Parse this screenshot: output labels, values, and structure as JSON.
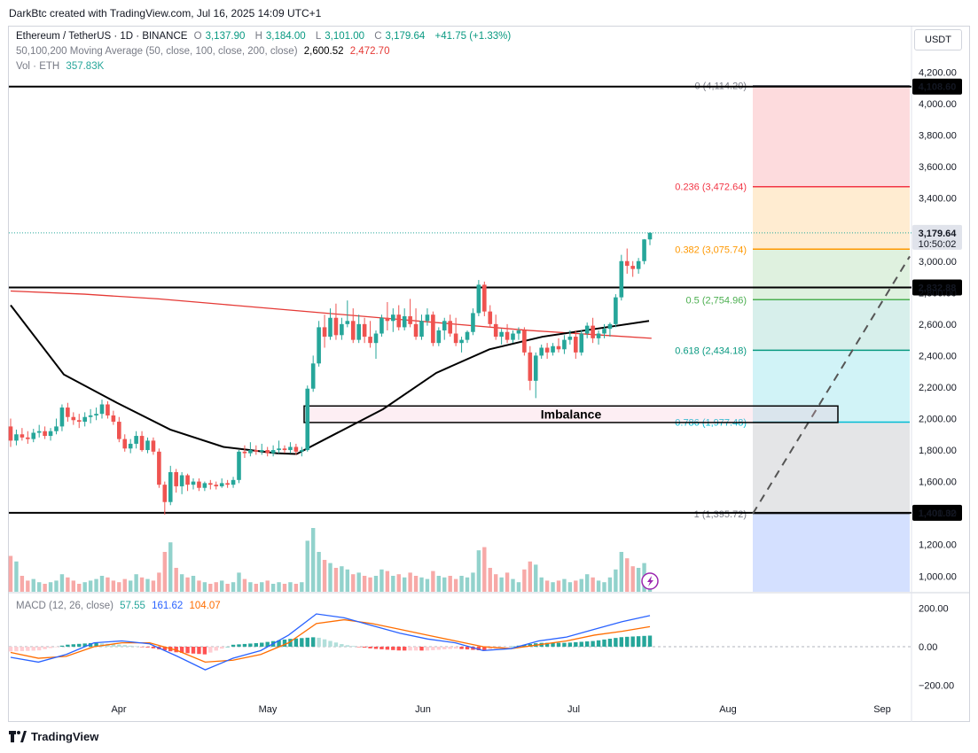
{
  "header": {
    "attribution": "DarkBtc created with TradingView.com, Jul 16, 2025 14:09 UTC+1"
  },
  "legend": {
    "symbol": "Ethereum / TetherUS · 1D · BINANCE",
    "o_label": "O",
    "o": "3,137.90",
    "h_label": "H",
    "h": "3,184.00",
    "l_label": "L",
    "l": "3,101.00",
    "c_label": "C",
    "c": "3,179.64",
    "change": "+41.75 (+1.33%)",
    "ma_label": "50,100,200 Moving Average (50, close, 100, close, 200, close)",
    "ma_v1": "2,600.52",
    "ma_v2": "2,472.70",
    "vol_label": "Vol · ETH",
    "vol": "357.83K",
    "macd_label": "MACD (12, 26, close)",
    "macd_v1": "57.55",
    "macd_v2": "161.62",
    "macd_v3": "104.07"
  },
  "currency_button": "USDT",
  "footer": {
    "brand": "TradingView"
  },
  "colors": {
    "up": "#26a69a",
    "down": "#ef5350",
    "ma50": "#000000",
    "ma200": "#e53935",
    "macd": "#2962ff",
    "signal": "#ff6d00"
  },
  "chart_data": {
    "type": "candlestick",
    "y_axis_ticks": [
      "4,200.00",
      "4,000.00",
      "3,800.00",
      "3,600.00",
      "3,400.00",
      "3,200.00",
      "3,000.00",
      "2,800.00",
      "2,600.00",
      "2,400.00",
      "2,200.00",
      "2,000.00",
      "1,800.00",
      "1,600.00",
      "1,400.00",
      "1,200.00",
      "1,000.00"
    ],
    "y_axis_values": [
      4200,
      4000,
      3800,
      3600,
      3400,
      3200,
      3000,
      2800,
      2600,
      2400,
      2200,
      2000,
      1800,
      1600,
      1400,
      1200,
      1000
    ],
    "x_axis_labels": [
      "Apr",
      "May",
      "Jun",
      "Jul",
      "Aug",
      "Sep"
    ],
    "price_range": [
      900,
      4300
    ],
    "last_price": "3,179.64",
    "countdown": "10:50:02",
    "horizontal_levels": [
      {
        "value": 4108.6,
        "label": "4,108.60"
      },
      {
        "value": 2832.88,
        "label": "2,832.88"
      },
      {
        "value": 1401.32,
        "label": "1,401.32"
      }
    ],
    "fib_levels": [
      {
        "ratio": "0",
        "label": "0 (4,114.20)",
        "value": 4114.2,
        "color": "#787b86"
      },
      {
        "ratio": "0.236",
        "label": "0.236 (3,472.64)",
        "value": 3472.64,
        "color": "#f23645"
      },
      {
        "ratio": "0.382",
        "label": "0.382 (3,075.74)",
        "value": 3075.74,
        "color": "#ff9800"
      },
      {
        "ratio": "0.5",
        "label": "0.5 (2,754.96)",
        "value": 2754.96,
        "color": "#4caf50"
      },
      {
        "ratio": "0.618",
        "label": "0.618 (2,434.18)",
        "value": 2434.18,
        "color": "#089981"
      },
      {
        "ratio": "0.786",
        "label": "0.786 (1,977.48)",
        "value": 1977.48,
        "color": "#00bcd4"
      },
      {
        "ratio": "1",
        "label": "1 (1,395.72)",
        "value": 1395.72,
        "color": "#787b86"
      }
    ],
    "imbalance": {
      "label": "Imbalance",
      "top": 2080,
      "bottom": 1975
    },
    "macd_axis_ticks": [
      "200.00",
      "0.00",
      "−200.00"
    ],
    "macd_axis_values": [
      200,
      0,
      -200
    ],
    "candles": [
      [
        1950,
        2000,
        1820,
        1860
      ],
      [
        1860,
        1930,
        1830,
        1900
      ],
      [
        1900,
        1940,
        1860,
        1880
      ],
      [
        1880,
        1920,
        1840,
        1870
      ],
      [
        1870,
        1935,
        1850,
        1910
      ],
      [
        1910,
        1960,
        1880,
        1920
      ],
      [
        1920,
        1950,
        1870,
        1890
      ],
      [
        1890,
        1940,
        1860,
        1920
      ],
      [
        1920,
        2000,
        1900,
        1950
      ],
      [
        1950,
        2090,
        1920,
        2070
      ],
      [
        2070,
        2100,
        1980,
        2010
      ],
      [
        2010,
        2040,
        1960,
        1990
      ],
      [
        1990,
        2030,
        1940,
        1980
      ],
      [
        1980,
        2040,
        1950,
        2010
      ],
      [
        2010,
        2060,
        1970,
        2020
      ],
      [
        2020,
        2070,
        1990,
        2030
      ],
      [
        2030,
        2120,
        2000,
        2090
      ],
      [
        2090,
        2110,
        2000,
        2020
      ],
      [
        2020,
        2050,
        1960,
        1980
      ],
      [
        1980,
        2010,
        1850,
        1870
      ],
      [
        1870,
        1900,
        1790,
        1810
      ],
      [
        1810,
        1870,
        1780,
        1840
      ],
      [
        1840,
        1920,
        1810,
        1890
      ],
      [
        1890,
        1920,
        1790,
        1800
      ],
      [
        1800,
        1880,
        1780,
        1860
      ],
      [
        1860,
        1880,
        1770,
        1790
      ],
      [
        1790,
        1810,
        1560,
        1580
      ],
      [
        1580,
        1600,
        1390,
        1470
      ],
      [
        1470,
        1700,
        1450,
        1660
      ],
      [
        1660,
        1680,
        1530,
        1570
      ],
      [
        1570,
        1660,
        1520,
        1640
      ],
      [
        1640,
        1650,
        1540,
        1580
      ],
      [
        1580,
        1620,
        1550,
        1600
      ],
      [
        1600,
        1620,
        1540,
        1560
      ],
      [
        1560,
        1600,
        1540,
        1590
      ],
      [
        1590,
        1610,
        1550,
        1580
      ],
      [
        1580,
        1600,
        1550,
        1570
      ],
      [
        1570,
        1620,
        1560,
        1590
      ],
      [
        1590,
        1610,
        1560,
        1580
      ],
      [
        1580,
        1630,
        1560,
        1610
      ],
      [
        1610,
        1800,
        1590,
        1790
      ],
      [
        1790,
        1830,
        1750,
        1780
      ],
      [
        1780,
        1850,
        1760,
        1800
      ],
      [
        1800,
        1830,
        1770,
        1790
      ],
      [
        1790,
        1840,
        1770,
        1800
      ],
      [
        1800,
        1820,
        1760,
        1780
      ],
      [
        1780,
        1830,
        1760,
        1800
      ],
      [
        1800,
        1860,
        1780,
        1810
      ],
      [
        1810,
        1830,
        1780,
        1800
      ],
      [
        1800,
        1850,
        1780,
        1820
      ],
      [
        1820,
        1840,
        1770,
        1790
      ],
      [
        1790,
        1820,
        1760,
        1800
      ],
      [
        1800,
        2210,
        1790,
        2190
      ],
      [
        2190,
        2400,
        2170,
        2350
      ],
      [
        2350,
        2620,
        2330,
        2580
      ],
      [
        2580,
        2660,
        2450,
        2520
      ],
      [
        2520,
        2700,
        2500,
        2640
      ],
      [
        2640,
        2730,
        2500,
        2530
      ],
      [
        2530,
        2640,
        2500,
        2600
      ],
      [
        2600,
        2750,
        2580,
        2620
      ],
      [
        2620,
        2700,
        2480,
        2500
      ],
      [
        2500,
        2660,
        2480,
        2600
      ],
      [
        2600,
        2640,
        2480,
        2520
      ],
      [
        2520,
        2620,
        2450,
        2480
      ],
      [
        2480,
        2560,
        2380,
        2540
      ],
      [
        2540,
        2660,
        2520,
        2640
      ],
      [
        2640,
        2740,
        2560,
        2620
      ],
      [
        2620,
        2700,
        2550,
        2660
      ],
      [
        2660,
        2720,
        2560,
        2580
      ],
      [
        2580,
        2700,
        2560,
        2650
      ],
      [
        2650,
        2760,
        2580,
        2600
      ],
      [
        2600,
        2700,
        2500,
        2520
      ],
      [
        2520,
        2660,
        2500,
        2620
      ],
      [
        2620,
        2700,
        2590,
        2660
      ],
      [
        2660,
        2680,
        2460,
        2480
      ],
      [
        2480,
        2580,
        2460,
        2560
      ],
      [
        2560,
        2640,
        2500,
        2620
      ],
      [
        2620,
        2660,
        2520,
        2540
      ],
      [
        2540,
        2640,
        2460,
        2480
      ],
      [
        2480,
        2520,
        2420,
        2500
      ],
      [
        2500,
        2560,
        2480,
        2550
      ],
      [
        2550,
        2700,
        2530,
        2670
      ],
      [
        2670,
        2880,
        2650,
        2850
      ],
      [
        2850,
        2870,
        2650,
        2680
      ],
      [
        2680,
        2720,
        2580,
        2600
      ],
      [
        2600,
        2660,
        2500,
        2520
      ],
      [
        2520,
        2570,
        2470,
        2550
      ],
      [
        2550,
        2600,
        2480,
        2500
      ],
      [
        2500,
        2560,
        2480,
        2540
      ],
      [
        2540,
        2580,
        2500,
        2560
      ],
      [
        2560,
        2580,
        2400,
        2420
      ],
      [
        2420,
        2460,
        2180,
        2240
      ],
      [
        2240,
        2420,
        2130,
        2400
      ],
      [
        2400,
        2470,
        2380,
        2450
      ],
      [
        2450,
        2480,
        2380,
        2420
      ],
      [
        2420,
        2480,
        2400,
        2460
      ],
      [
        2460,
        2510,
        2420,
        2440
      ],
      [
        2440,
        2530,
        2410,
        2500
      ],
      [
        2500,
        2560,
        2470,
        2520
      ],
      [
        2520,
        2560,
        2380,
        2420
      ],
      [
        2420,
        2560,
        2400,
        2540
      ],
      [
        2540,
        2610,
        2510,
        2590
      ],
      [
        2590,
        2640,
        2480,
        2510
      ],
      [
        2510,
        2560,
        2470,
        2540
      ],
      [
        2540,
        2600,
        2510,
        2570
      ],
      [
        2570,
        2610,
        2520,
        2600
      ],
      [
        2600,
        2790,
        2580,
        2770
      ],
      [
        2770,
        3040,
        2750,
        3000
      ],
      [
        3000,
        3080,
        2920,
        2970
      ],
      [
        2970,
        3000,
        2900,
        2950
      ],
      [
        2950,
        3020,
        2920,
        3000
      ],
      [
        3000,
        3140,
        2980,
        3137.9
      ],
      [
        3137.9,
        3184,
        3101,
        3179.64
      ]
    ],
    "volume": [
      0.45,
      0.38,
      0.2,
      0.14,
      0.16,
      0.12,
      0.1,
      0.12,
      0.14,
      0.22,
      0.18,
      0.14,
      0.1,
      0.12,
      0.14,
      0.16,
      0.2,
      0.18,
      0.14,
      0.12,
      0.16,
      0.14,
      0.22,
      0.18,
      0.16,
      0.14,
      0.24,
      0.5,
      0.62,
      0.3,
      0.22,
      0.18,
      0.2,
      0.14,
      0.12,
      0.1,
      0.12,
      0.14,
      0.1,
      0.12,
      0.24,
      0.16,
      0.12,
      0.1,
      0.12,
      0.14,
      0.1,
      0.12,
      0.1,
      0.12,
      0.1,
      0.12,
      0.64,
      0.8,
      0.5,
      0.4,
      0.36,
      0.3,
      0.32,
      0.28,
      0.22,
      0.24,
      0.2,
      0.18,
      0.2,
      0.28,
      0.26,
      0.2,
      0.22,
      0.18,
      0.24,
      0.2,
      0.18,
      0.16,
      0.26,
      0.2,
      0.18,
      0.2,
      0.16,
      0.2,
      0.18,
      0.24,
      0.52,
      0.56,
      0.3,
      0.22,
      0.18,
      0.24,
      0.16,
      0.12,
      0.28,
      0.38,
      0.34,
      0.18,
      0.14,
      0.12,
      0.14,
      0.16,
      0.12,
      0.14,
      0.16,
      0.22,
      0.18,
      0.14,
      0.12,
      0.18,
      0.28,
      0.5,
      0.42,
      0.32,
      0.3,
      0.36,
      0.1
    ],
    "ma50": [
      [
        0,
        2720
      ],
      [
        40,
        2280
      ],
      [
        80,
        2100
      ],
      [
        120,
        1930
      ],
      [
        160,
        1820
      ],
      [
        200,
        1780
      ],
      [
        215,
        1775
      ],
      [
        280,
        2060
      ],
      [
        320,
        2290
      ],
      [
        360,
        2440
      ],
      [
        400,
        2520
      ],
      [
        440,
        2570
      ],
      [
        480,
        2620
      ]
    ],
    "ma200": [
      [
        0,
        2810
      ],
      [
        60,
        2790
      ],
      [
        120,
        2760
      ],
      [
        180,
        2720
      ],
      [
        240,
        2680
      ],
      [
        300,
        2640
      ],
      [
        360,
        2600
      ],
      [
        420,
        2560
      ],
      [
        480,
        2530
      ],
      [
        520,
        2510
      ]
    ],
    "macd_line": [
      -55,
      -80,
      -40,
      20,
      30,
      15,
      -50,
      -120,
      -60,
      -20,
      60,
      170,
      150,
      110,
      70,
      40,
      20,
      -20,
      -10,
      30,
      50,
      90,
      130,
      161.62
    ],
    "signal_line": [
      -30,
      -60,
      -50,
      0,
      20,
      20,
      -20,
      -80,
      -70,
      -40,
      20,
      120,
      140,
      120,
      90,
      60,
      30,
      0,
      -10,
      10,
      30,
      60,
      80,
      104.07
    ]
  }
}
